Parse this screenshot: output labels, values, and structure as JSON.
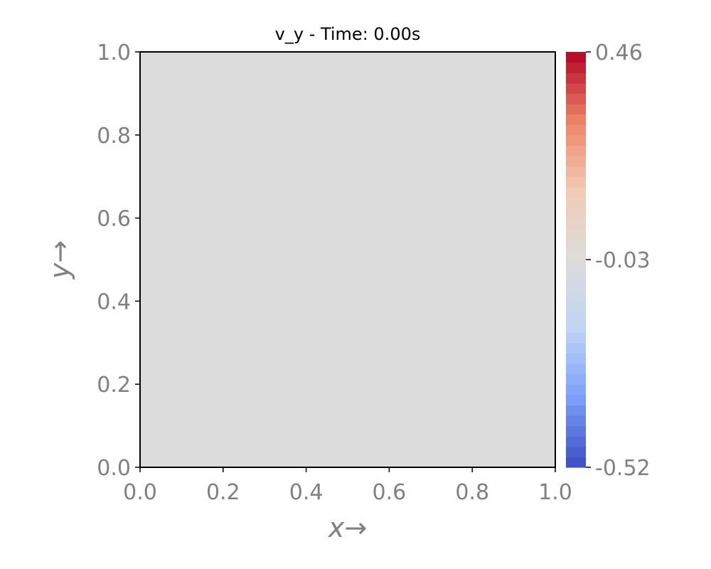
{
  "chart_data": {
    "type": "heatmap",
    "title": "v_y - Time: 0.00s",
    "xlabel": "x→",
    "ylabel": "y→",
    "xlim": [
      0.0,
      1.0
    ],
    "ylim": [
      0.0,
      1.0
    ],
    "xticks": [
      0.0,
      0.2,
      0.4,
      0.6,
      0.8,
      1.0
    ],
    "xtick_labels": [
      "0.0",
      "0.2",
      "0.4",
      "0.6",
      "0.8",
      "1.0"
    ],
    "yticks": [
      0.0,
      0.2,
      0.4,
      0.6,
      0.8,
      1.0
    ],
    "ytick_labels": [
      "0.0",
      "0.2",
      "0.4",
      "0.6",
      "0.8",
      "1.0"
    ],
    "field_value": -0.03,
    "field_color": "#dddcdc",
    "colorbar": {
      "colormap": "coolwarm",
      "min": -0.52,
      "max": 0.46,
      "ticks": [
        0.46,
        -0.03,
        -0.52
      ],
      "tick_labels": [
        "0.46",
        "-0.03",
        "-0.52"
      ],
      "bands": 40,
      "colors": [
        "#3b4cc0",
        "#7b9ff9",
        "#c0d4f5",
        "#dddcdc",
        "#f2cbb7",
        "#ee8468",
        "#b40426"
      ]
    },
    "grid": false,
    "legend": "none"
  }
}
